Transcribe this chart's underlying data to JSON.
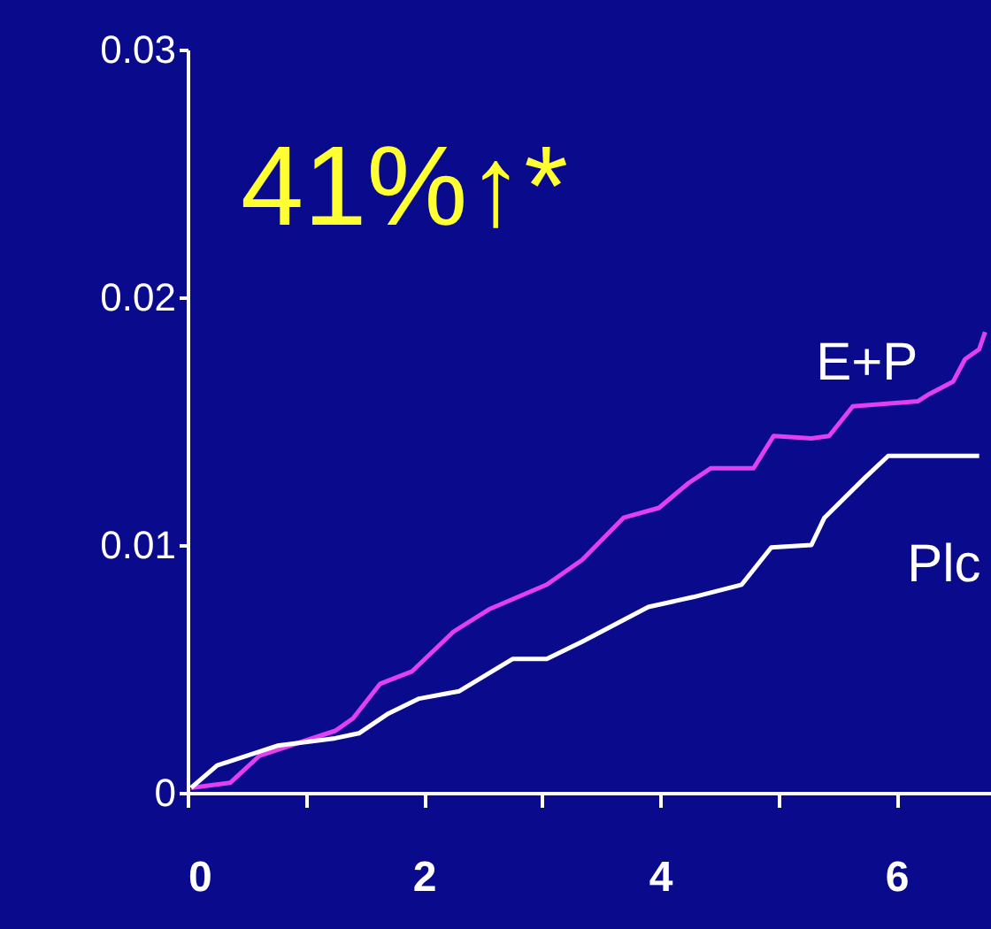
{
  "chart_data": {
    "type": "line",
    "annotations": [
      "41%↑*"
    ],
    "xlim": [
      0,
      6.8
    ],
    "xticks": [
      0,
      {
        "value": 1,
        "label": null
      },
      2,
      {
        "value": 3,
        "label": null
      },
      4,
      {
        "value": 5,
        "label": null
      },
      6
    ],
    "ylim": [
      0,
      0.03
    ],
    "yticks": [
      0,
      0.01,
      0.02,
      0.03
    ],
    "grid": false,
    "marker": "none",
    "line_style": "solid",
    "series": [
      {
        "name": "E+P",
        "color": "#e040f0",
        "x": [
          0.03,
          0.36,
          0.61,
          1.25,
          1.4,
          1.63,
          1.9,
          2.25,
          2.55,
          3.04,
          3.34,
          3.69,
          3.99,
          4.24,
          4.43,
          4.79,
          4.96,
          5.28,
          5.43,
          5.63,
          6.18,
          6.28,
          6.48,
          6.58,
          6.7,
          6.75
        ],
        "values": [
          0.0002,
          0.0004,
          0.0015,
          0.0025,
          0.003,
          0.0044,
          0.0049,
          0.0065,
          0.0074,
          0.0084,
          0.0094,
          0.0111,
          0.0115,
          0.0125,
          0.0131,
          0.0131,
          0.0144,
          0.0143,
          0.0144,
          0.0156,
          0.0158,
          0.0161,
          0.0166,
          0.0175,
          0.0179,
          0.0186
        ]
      },
      {
        "name": "Plc",
        "color": "#ffffff",
        "x": [
          0.03,
          0.25,
          0.76,
          1.25,
          1.45,
          1.7,
          1.96,
          2.3,
          2.75,
          3.04,
          3.34,
          3.9,
          4.28,
          4.69,
          4.94,
          5.28,
          5.39,
          5.73,
          5.93,
          6.52,
          6.7
        ],
        "values": [
          0.0002,
          0.0011,
          0.0019,
          0.0022,
          0.0024,
          0.0032,
          0.0038,
          0.0041,
          0.0054,
          0.0054,
          0.0061,
          0.0075,
          0.0079,
          0.0084,
          0.0099,
          0.01,
          0.0111,
          0.0127,
          0.0136,
          0.0136,
          0.0136
        ]
      }
    ]
  }
}
